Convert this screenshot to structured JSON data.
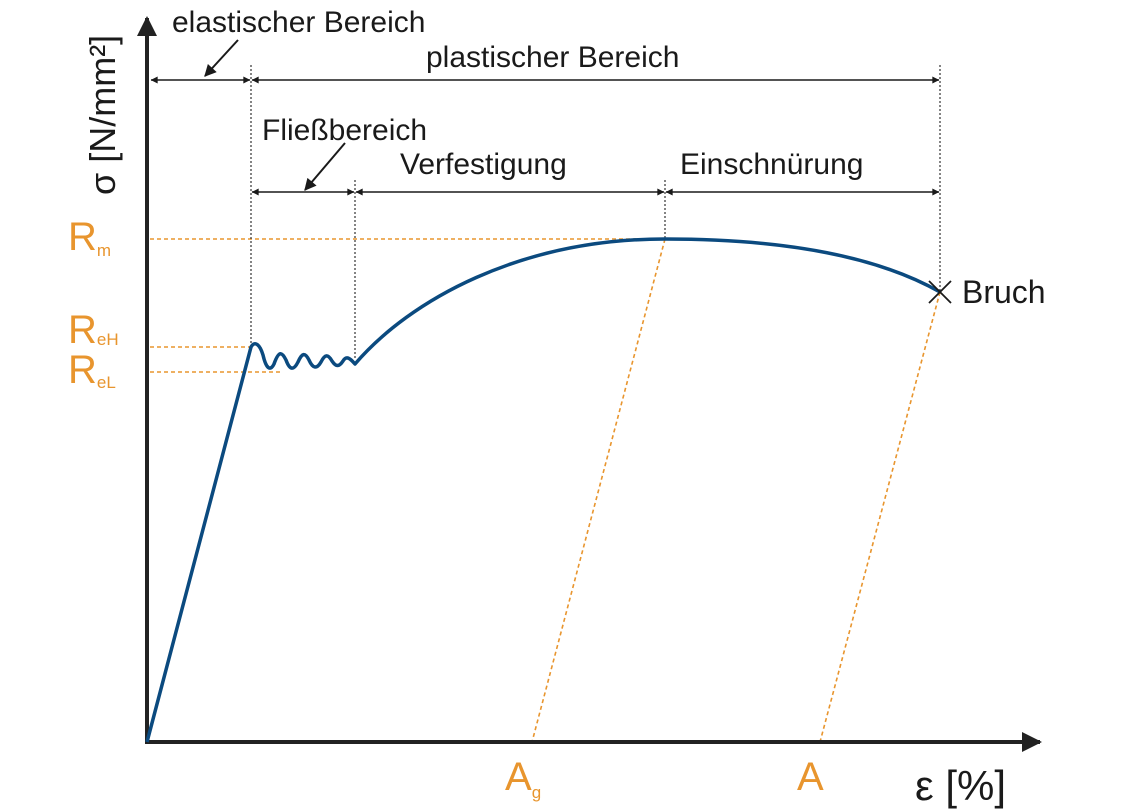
{
  "colors": {
    "curve": "#0b4a7f",
    "axis": "#222222",
    "accent": "#e8952e",
    "text": "#1a1a1a"
  },
  "axes": {
    "y_label": "σ [N/mm²]",
    "x_label": "ε [%]"
  },
  "regions": {
    "elastic": "elastischer Bereich",
    "plastic": "plastischer Bereich",
    "yield": "Fließbereich",
    "hardening": "Verfestigung",
    "necking": "Einschnürung"
  },
  "markers": {
    "Rm": {
      "main": "R",
      "sub": "m"
    },
    "ReH": {
      "main": "R",
      "sub": "eH"
    },
    "ReL": {
      "main": "R",
      "sub": "eL"
    },
    "Ag": {
      "main": "A",
      "sub": "g"
    },
    "A": {
      "main": "A",
      "sub": ""
    }
  },
  "fracture_label": "Bruch",
  "icons": {
    "fracture": "x-cross-icon",
    "arrow": "arrowhead-icon"
  }
}
